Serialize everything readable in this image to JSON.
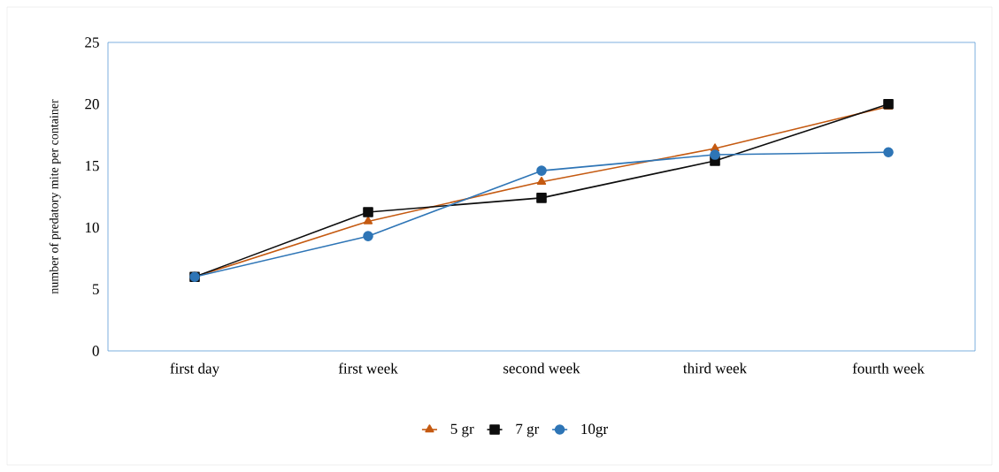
{
  "chart_data": {
    "type": "line",
    "ylabel": "number of predatory mite per container",
    "categories": [
      "first day",
      "first week",
      "second week",
      "third week",
      "fourth week"
    ],
    "series": [
      {
        "name": "5 gr",
        "color": "#c55a11",
        "marker": "triangle",
        "values": [
          6.0,
          10.5,
          13.7,
          16.4,
          19.8
        ]
      },
      {
        "name": "7 gr",
        "color": "#0d0d0d",
        "marker": "square",
        "values": [
          6.0,
          11.25,
          12.4,
          15.4,
          20.0
        ]
      },
      {
        "name": "10gr",
        "color": "#2e75b6",
        "marker": "circle",
        "values": [
          6.0,
          9.3,
          14.6,
          15.9,
          16.1
        ]
      }
    ],
    "ylim": [
      0,
      25
    ],
    "yticks": [
      0,
      5,
      10,
      15,
      20,
      25
    ],
    "grid": false,
    "legend": "bottom",
    "line_style": "solid"
  }
}
